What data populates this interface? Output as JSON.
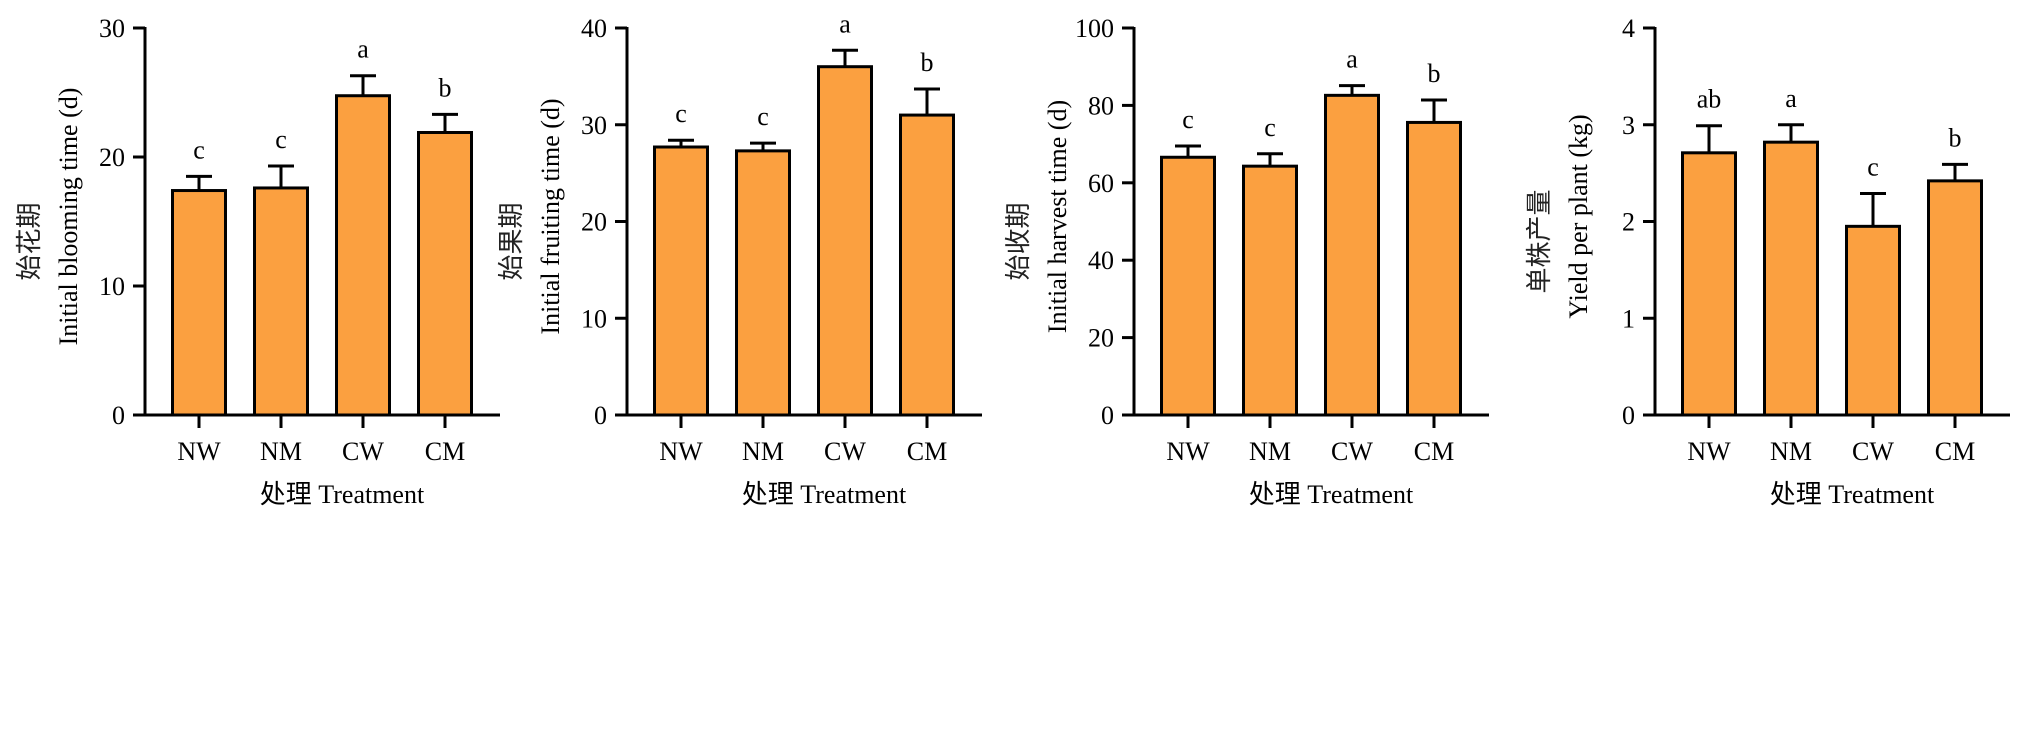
{
  "bar_color": "#FBA040",
  "chart_data": [
    {
      "type": "bar",
      "categories": [
        "NW",
        "NM",
        "CW",
        "CM"
      ],
      "values": [
        17.4,
        17.6,
        24.75,
        21.9
      ],
      "errors_upper": [
        18.5,
        19.3,
        26.3,
        23.3
      ],
      "letters": [
        "c",
        "c",
        "a",
        "b"
      ],
      "ylabel_cn": "始花期",
      "ylabel": "Initial blooming time (d)",
      "xlabel": "处理 Treatment",
      "ylim": [
        0,
        30
      ],
      "yticks": [
        0,
        10,
        20,
        30
      ]
    },
    {
      "type": "bar",
      "categories": [
        "NW",
        "NM",
        "CW",
        "CM"
      ],
      "values": [
        27.7,
        27.3,
        36.0,
        31.0
      ],
      "errors_upper": [
        28.4,
        28.1,
        37.7,
        33.7
      ],
      "letters": [
        "c",
        "c",
        "a",
        "b"
      ],
      "ylabel_cn": "始果期",
      "ylabel": "Initial fruiting time (d)",
      "xlabel": "处理 Treatment",
      "ylim": [
        0,
        40
      ],
      "yticks": [
        0,
        10,
        20,
        30,
        40
      ]
    },
    {
      "type": "bar",
      "categories": [
        "NW",
        "NM",
        "CW",
        "CM"
      ],
      "values": [
        66.6,
        64.3,
        82.6,
        75.6
      ],
      "errors_upper": [
        69.5,
        67.5,
        85.1,
        81.4
      ],
      "letters": [
        "c",
        "c",
        "a",
        "b"
      ],
      "ylabel_cn": "始收期",
      "ylabel": "Initial harvest time (d)",
      "xlabel": "处理 Treatment",
      "ylim": [
        0,
        100
      ],
      "yticks": [
        0,
        20,
        40,
        60,
        80,
        100
      ]
    },
    {
      "type": "bar",
      "categories": [
        "NW",
        "NM",
        "CW",
        "CM"
      ],
      "values": [
        2.71,
        2.82,
        1.95,
        2.42
      ],
      "errors_upper": [
        2.99,
        3.0,
        2.29,
        2.59
      ],
      "letters": [
        "ab",
        "a",
        "c",
        "b"
      ],
      "ylabel_cn": "单株产量",
      "ylabel": "Yield per plant (kg)",
      "xlabel": "处理 Treatment",
      "ylim": [
        0,
        4
      ],
      "yticks": [
        0,
        1,
        2,
        3,
        4
      ]
    }
  ]
}
